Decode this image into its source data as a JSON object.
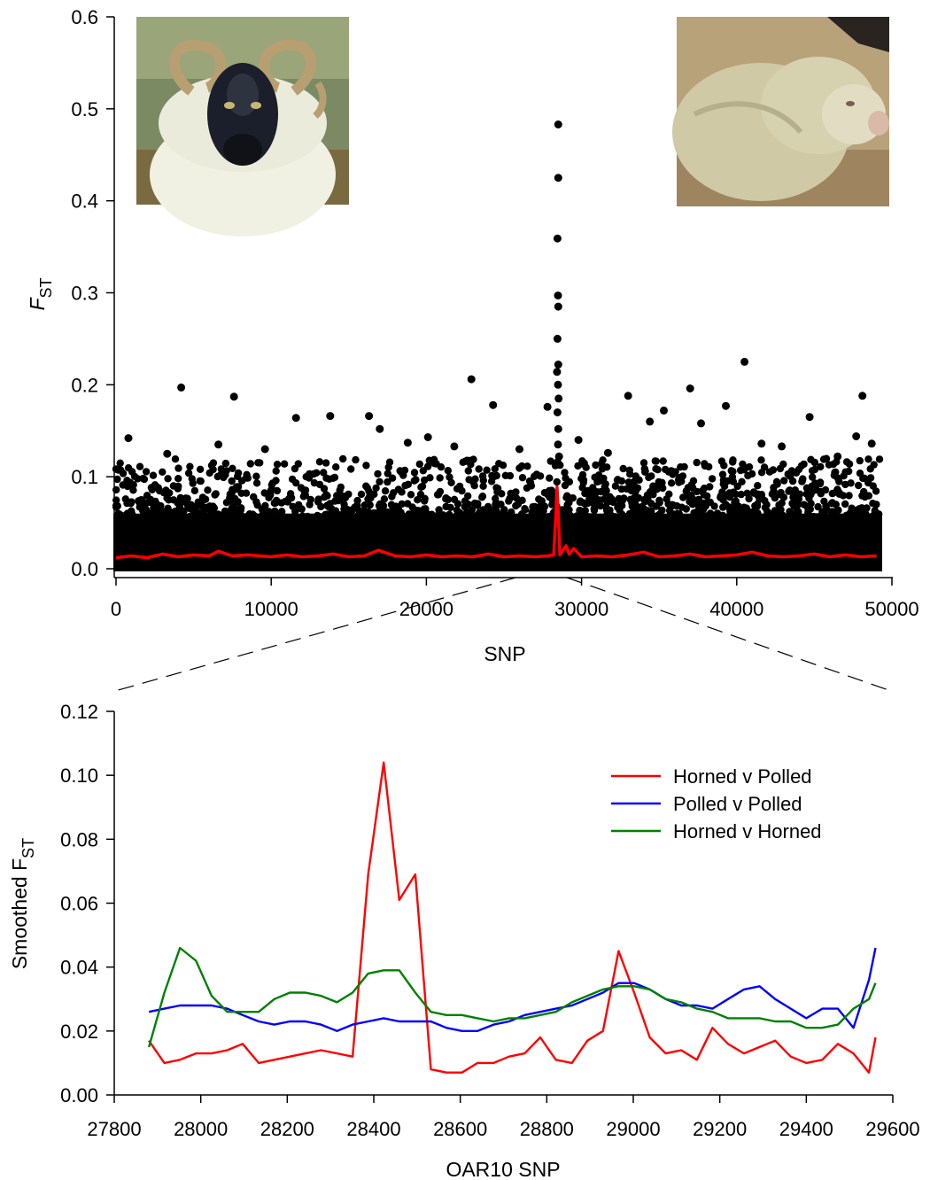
{
  "chart_data": [
    {
      "type": "scatter",
      "xlabel": "SNP",
      "ylabel": {
        "main": "F",
        "sub": "ST"
      },
      "xlim": [
        0,
        50000
      ],
      "ylim": [
        0,
        0.6
      ],
      "xticks": [
        "0",
        "10000",
        "20000",
        "30000",
        "40000",
        "50000"
      ],
      "yticks": [
        "0.0",
        "0.1",
        "0.2",
        "0.3",
        "0.4",
        "0.5",
        "0.6"
      ],
      "grid": false,
      "images": [
        "horned-sheep-photo",
        "polled-sheep-photo"
      ],
      "highlight_points": [
        [
          800,
          0.142
        ],
        [
          3300,
          0.125
        ],
        [
          4200,
          0.197
        ],
        [
          6600,
          0.135
        ],
        [
          7600,
          0.187
        ],
        [
          9600,
          0.13
        ],
        [
          11600,
          0.164
        ],
        [
          13800,
          0.166
        ],
        [
          16300,
          0.166
        ],
        [
          17000,
          0.152
        ],
        [
          18800,
          0.137
        ],
        [
          20100,
          0.143
        ],
        [
          21800,
          0.133
        ],
        [
          22900,
          0.206
        ],
        [
          24300,
          0.178
        ],
        [
          26000,
          0.13
        ],
        [
          27800,
          0.176
        ],
        [
          28500,
          0.483
        ],
        [
          28500,
          0.425
        ],
        [
          28450,
          0.359
        ],
        [
          28480,
          0.297
        ],
        [
          28500,
          0.285
        ],
        [
          28450,
          0.25
        ],
        [
          28500,
          0.222
        ],
        [
          28420,
          0.214
        ],
        [
          28480,
          0.2
        ],
        [
          28520,
          0.185
        ],
        [
          28450,
          0.17
        ],
        [
          28500,
          0.152
        ],
        [
          28480,
          0.135
        ],
        [
          28550,
          0.122
        ],
        [
          29800,
          0.14
        ],
        [
          31700,
          0.126
        ],
        [
          33000,
          0.188
        ],
        [
          34400,
          0.16
        ],
        [
          35300,
          0.172
        ],
        [
          37000,
          0.196
        ],
        [
          37700,
          0.158
        ],
        [
          39300,
          0.177
        ],
        [
          40500,
          0.225
        ],
        [
          41600,
          0.136
        ],
        [
          42900,
          0.133
        ],
        [
          44700,
          0.165
        ],
        [
          46500,
          0.122
        ],
        [
          47700,
          0.144
        ],
        [
          48100,
          0.188
        ],
        [
          48700,
          0.136
        ]
      ],
      "series": [
        {
          "name": "Smoothed FST",
          "color": "#ff0000",
          "points": [
            [
              0,
              0.012
            ],
            [
              1000,
              0.014
            ],
            [
              2000,
              0.012
            ],
            [
              3000,
              0.016
            ],
            [
              4000,
              0.013
            ],
            [
              5000,
              0.015
            ],
            [
              6000,
              0.014
            ],
            [
              6600,
              0.019
            ],
            [
              7500,
              0.014
            ],
            [
              8500,
              0.015
            ],
            [
              10000,
              0.013
            ],
            [
              11000,
              0.015
            ],
            [
              12000,
              0.013
            ],
            [
              13000,
              0.014
            ],
            [
              14000,
              0.016
            ],
            [
              15000,
              0.013
            ],
            [
              16000,
              0.014
            ],
            [
              16900,
              0.02
            ],
            [
              18000,
              0.014
            ],
            [
              19000,
              0.013
            ],
            [
              20000,
              0.015
            ],
            [
              21000,
              0.013
            ],
            [
              22000,
              0.014
            ],
            [
              23000,
              0.013
            ],
            [
              24000,
              0.016
            ],
            [
              25000,
              0.013
            ],
            [
              26000,
              0.014
            ],
            [
              27000,
              0.013
            ],
            [
              27800,
              0.014
            ],
            [
              28200,
              0.015
            ],
            [
              28350,
              0.06
            ],
            [
              28420,
              0.089
            ],
            [
              28500,
              0.062
            ],
            [
              28600,
              0.015
            ],
            [
              28800,
              0.02
            ],
            [
              29000,
              0.025
            ],
            [
              29200,
              0.016
            ],
            [
              29500,
              0.022
            ],
            [
              30000,
              0.013
            ],
            [
              31000,
              0.014
            ],
            [
              32000,
              0.013
            ],
            [
              33000,
              0.015
            ],
            [
              34000,
              0.018
            ],
            [
              35000,
              0.013
            ],
            [
              36000,
              0.014
            ],
            [
              37000,
              0.016
            ],
            [
              38000,
              0.013
            ],
            [
              39000,
              0.014
            ],
            [
              40000,
              0.015
            ],
            [
              41000,
              0.018
            ],
            [
              42000,
              0.014
            ],
            [
              43000,
              0.013
            ],
            [
              44000,
              0.014
            ],
            [
              45000,
              0.016
            ],
            [
              46000,
              0.013
            ],
            [
              47000,
              0.015
            ],
            [
              48000,
              0.013
            ],
            [
              49000,
              0.014
            ]
          ]
        }
      ]
    },
    {
      "type": "line",
      "xlabel": "OAR10 SNP",
      "ylabel": {
        "main": "Smoothed F",
        "sub": "ST"
      },
      "xlim": [
        27800,
        29600
      ],
      "ylim": [
        0,
        0.12
      ],
      "xticks": [
        "27800",
        "28000",
        "28200",
        "28400",
        "28600",
        "28800",
        "29000",
        "29200",
        "29400",
        "29600"
      ],
      "yticks": [
        "0.00",
        "0.02",
        "0.04",
        "0.06",
        "0.08",
        "0.10",
        "0.12"
      ],
      "grid": false,
      "legend_position": "top-right",
      "x": [
        27880,
        27916,
        27952,
        27989,
        28025,
        28061,
        28097,
        28134,
        28170,
        28206,
        28242,
        28278,
        28315,
        28351,
        28387,
        28423,
        28459,
        28496,
        28532,
        28568,
        28604,
        28640,
        28677,
        28713,
        28749,
        28785,
        28821,
        28858,
        28894,
        28930,
        28966,
        29002,
        29038,
        29075,
        29111,
        29147,
        29183,
        29219,
        29256,
        29292,
        29328,
        29364,
        29400,
        29437,
        29473,
        29509,
        29545,
        29560
      ],
      "series": [
        {
          "name": "Horned v Polled",
          "color": "#ff0000",
          "values": [
            0.017,
            0.01,
            0.011,
            0.013,
            0.013,
            0.014,
            0.016,
            0.01,
            0.011,
            0.012,
            0.013,
            0.014,
            0.013,
            0.012,
            0.069,
            0.104,
            0.061,
            0.069,
            0.008,
            0.007,
            0.007,
            0.01,
            0.01,
            0.012,
            0.013,
            0.018,
            0.011,
            0.01,
            0.017,
            0.02,
            0.045,
            0.032,
            0.018,
            0.013,
            0.014,
            0.011,
            0.021,
            0.016,
            0.013,
            0.015,
            0.017,
            0.012,
            0.01,
            0.011,
            0.016,
            0.013,
            0.007,
            0.018
          ]
        },
        {
          "name": "Polled v Polled",
          "color": "#0000ff",
          "values": [
            0.026,
            0.027,
            0.028,
            0.028,
            0.028,
            0.027,
            0.025,
            0.023,
            0.022,
            0.023,
            0.023,
            0.022,
            0.02,
            0.022,
            0.023,
            0.024,
            0.023,
            0.023,
            0.023,
            0.021,
            0.02,
            0.02,
            0.022,
            0.023,
            0.025,
            0.026,
            0.027,
            0.028,
            0.03,
            0.032,
            0.035,
            0.035,
            0.033,
            0.03,
            0.028,
            0.028,
            0.027,
            0.03,
            0.033,
            0.034,
            0.03,
            0.027,
            0.024,
            0.027,
            0.027,
            0.021,
            0.036,
            0.046
          ]
        },
        {
          "name": "Horned v Horned",
          "color": "#008000",
          "values": [
            0.015,
            0.032,
            0.046,
            0.042,
            0.031,
            0.026,
            0.026,
            0.026,
            0.03,
            0.032,
            0.032,
            0.031,
            0.029,
            0.032,
            0.038,
            0.039,
            0.039,
            0.032,
            0.026,
            0.025,
            0.025,
            0.024,
            0.023,
            0.024,
            0.024,
            0.025,
            0.026,
            0.029,
            0.031,
            0.033,
            0.034,
            0.034,
            0.033,
            0.03,
            0.029,
            0.027,
            0.026,
            0.024,
            0.024,
            0.024,
            0.023,
            0.023,
            0.021,
            0.021,
            0.022,
            0.027,
            0.03,
            0.035
          ]
        }
      ]
    }
  ]
}
